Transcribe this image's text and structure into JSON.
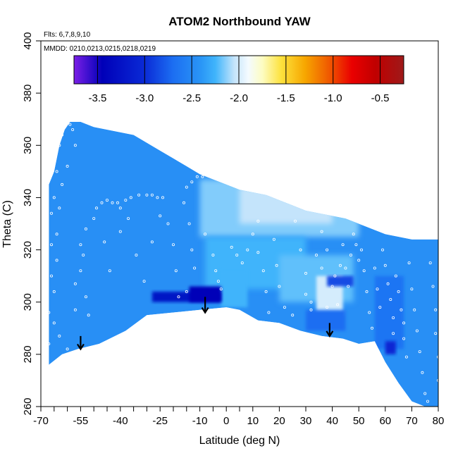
{
  "chart_data": {
    "type": "heatmap",
    "title": "ATOM2 Northbound YAW",
    "annotations": {
      "flights": "Flts: 6,7,8,9,10",
      "dates": "MMDD: 0210,0213,0215,0218,0219"
    },
    "xlabel": "Latitude (deg N)",
    "ylabel": "Theta (C)",
    "xlim": [
      -70,
      80
    ],
    "ylim": [
      260,
      400
    ],
    "x_ticks": [
      -70,
      -55,
      -40,
      -25,
      -10,
      0,
      10,
      20,
      30,
      40,
      50,
      60,
      70,
      80
    ],
    "x_tick_labels": [
      "-70",
      "-55",
      "-40",
      "-25",
      "-10",
      "0",
      "10",
      "20",
      "30",
      "40",
      "50",
      "60",
      "70",
      "80"
    ],
    "y_ticks": [
      260,
      280,
      300,
      320,
      340,
      360,
      380,
      400
    ],
    "y_tick_labels": [
      "260",
      "280",
      "300",
      "320",
      "340",
      "360",
      "380",
      "400"
    ],
    "colorbar": {
      "range": [
        -3.75,
        -0.25
      ],
      "ticks": [
        -3.5,
        -3.0,
        -2.5,
        -2.0,
        -1.5,
        -1.0,
        -0.5
      ],
      "tick_labels": [
        "-3.5",
        "-3.0",
        "-2.5",
        "-2.0",
        "-1.5",
        "-1.0",
        "-0.5"
      ],
      "stops": [
        {
          "value": -3.75,
          "color": "#7b1fe6"
        },
        {
          "value": -3.45,
          "color": "#0000b8"
        },
        {
          "value": -3.0,
          "color": "#0a2ad6"
        },
        {
          "value": -2.7,
          "color": "#1c6ef2"
        },
        {
          "value": -2.4,
          "color": "#2a96f6"
        },
        {
          "value": -2.25,
          "color": "#3fb4fb"
        },
        {
          "value": -2.05,
          "color": "#c4e4fb"
        },
        {
          "value": -1.9,
          "color": "#f4fbff"
        },
        {
          "value": -1.75,
          "color": "#fdfcc2"
        },
        {
          "value": -1.55,
          "color": "#fde23d"
        },
        {
          "value": -1.3,
          "color": "#f7a700"
        },
        {
          "value": -1.05,
          "color": "#f05b00"
        },
        {
          "value": -0.8,
          "color": "#ea0000"
        },
        {
          "value": -0.55,
          "color": "#c00000"
        },
        {
          "value": -0.25,
          "color": "#9e1a1a"
        }
      ]
    },
    "field_background_value": -2.45,
    "field_boundary": {
      "top": [
        [
          -67,
          345
        ],
        [
          -65,
          350
        ],
        [
          -63,
          360
        ],
        [
          -61,
          366
        ],
        [
          -59,
          369
        ],
        [
          -55,
          369
        ],
        [
          -50,
          367
        ],
        [
          -45,
          366
        ],
        [
          -40,
          365
        ],
        [
          -35,
          364
        ],
        [
          -30,
          361
        ],
        [
          -25,
          358
        ],
        [
          -20,
          355
        ],
        [
          -15,
          352
        ],
        [
          -10,
          349
        ],
        [
          -5,
          347
        ],
        [
          0,
          345
        ],
        [
          5,
          343
        ],
        [
          10,
          342
        ],
        [
          15,
          341
        ],
        [
          20,
          339
        ],
        [
          25,
          337
        ],
        [
          30,
          335
        ],
        [
          35,
          334
        ],
        [
          40,
          333
        ],
        [
          45,
          332
        ],
        [
          50,
          330
        ],
        [
          55,
          328
        ],
        [
          60,
          326
        ],
        [
          65,
          325
        ],
        [
          70,
          324
        ],
        [
          75,
          324
        ],
        [
          80,
          324
        ]
      ],
      "bottom": [
        [
          -67,
          276
        ],
        [
          -62,
          280
        ],
        [
          -56,
          282
        ],
        [
          -48,
          284
        ],
        [
          -38,
          289
        ],
        [
          -30,
          295
        ],
        [
          -20,
          296
        ],
        [
          -10,
          297
        ],
        [
          0,
          298
        ],
        [
          5,
          297
        ],
        [
          12,
          293
        ],
        [
          20,
          292
        ],
        [
          28,
          289
        ],
        [
          36,
          287
        ],
        [
          44,
          286
        ],
        [
          50,
          284
        ],
        [
          56,
          285
        ],
        [
          60,
          277
        ],
        [
          65,
          269
        ],
        [
          70,
          262
        ],
        [
          75,
          260
        ],
        [
          80,
          260
        ]
      ]
    },
    "field_patches": [
      {
        "x": [
          -10,
          50
        ],
        "y": [
          325,
          347
        ],
        "value": -2.15
      },
      {
        "x": [
          5,
          40
        ],
        "y": [
          330,
          344
        ],
        "value": -2.05
      },
      {
        "x": [
          -8,
          30
        ],
        "y": [
          305,
          325
        ],
        "value": -2.25
      },
      {
        "x": [
          20,
          48
        ],
        "y": [
          300,
          318
        ],
        "value": -2.2
      },
      {
        "x": [
          34,
          44
        ],
        "y": [
          295,
          310
        ],
        "value": -2.0
      },
      {
        "x": [
          -2,
          8
        ],
        "y": [
          298,
          312
        ],
        "value": -2.25
      },
      {
        "x": [
          -28,
          -2
        ],
        "y": [
          300,
          304
        ],
        "value": -3.25
      },
      {
        "x": [
          -14,
          -2
        ],
        "y": [
          300,
          306
        ],
        "value": -3.45
      },
      {
        "x": [
          38,
          48
        ],
        "y": [
          306,
          310
        ],
        "value": -2.85
      },
      {
        "x": [
          56,
          67
        ],
        "y": [
          282,
          310
        ],
        "value": -2.65
      },
      {
        "x": [
          60,
          64
        ],
        "y": [
          280,
          285
        ],
        "value": -3.05
      },
      {
        "x": [
          30,
          45
        ],
        "y": [
          289,
          297
        ],
        "value": -2.7
      }
    ],
    "arrows": [
      {
        "lat": -55,
        "theta_top": 287,
        "theta_tip": 282
      },
      {
        "lat": -8,
        "theta_top": 302,
        "theta_tip": 296
      },
      {
        "lat": 39,
        "theta_top": 292,
        "theta_tip": 287
      }
    ],
    "sample_points": [
      [
        -67,
        284
      ],
      [
        -67,
        296
      ],
      [
        -66,
        310
      ],
      [
        -66,
        322
      ],
      [
        -66,
        334
      ],
      [
        -65,
        340
      ],
      [
        -64,
        350
      ],
      [
        -63,
        360
      ],
      [
        -62,
        364
      ],
      [
        -61,
        367
      ],
      [
        -60,
        369
      ],
      [
        -59,
        368
      ],
      [
        -58,
        366
      ],
      [
        -57,
        360
      ],
      [
        -60,
        352
      ],
      [
        -62,
        345
      ],
      [
        -63,
        336
      ],
      [
        -64,
        326
      ],
      [
        -64,
        316
      ],
      [
        -65,
        304
      ],
      [
        -65,
        292
      ],
      [
        -63,
        287
      ],
      [
        -60,
        282
      ],
      [
        -57,
        307
      ],
      [
        -57,
        297
      ],
      [
        -55,
        312
      ],
      [
        -55,
        322
      ],
      [
        -54,
        318
      ],
      [
        -53,
        328
      ],
      [
        -53,
        302
      ],
      [
        -52,
        295
      ],
      [
        -50,
        332
      ],
      [
        -49,
        336
      ],
      [
        -47,
        338
      ],
      [
        -45,
        339
      ],
      [
        -43,
        338
      ],
      [
        -41,
        338
      ],
      [
        -40,
        336
      ],
      [
        -38,
        339
      ],
      [
        -36,
        340
      ],
      [
        -33,
        341
      ],
      [
        -30,
        341
      ],
      [
        -28,
        341
      ],
      [
        -26,
        340
      ],
      [
        -24,
        340
      ],
      [
        -44,
        312
      ],
      [
        -46,
        323
      ],
      [
        -40,
        327
      ],
      [
        -37,
        332
      ],
      [
        -34,
        318
      ],
      [
        -31,
        308
      ],
      [
        -28,
        323
      ],
      [
        -25,
        333
      ],
      [
        -22,
        330
      ],
      [
        -20,
        322
      ],
      [
        -19,
        312
      ],
      [
        -18,
        302
      ],
      [
        -16,
        338
      ],
      [
        -15,
        344
      ],
      [
        -13,
        346
      ],
      [
        -11,
        348
      ],
      [
        -9,
        348
      ],
      [
        -14,
        330
      ],
      [
        -13,
        320
      ],
      [
        -12,
        313
      ],
      [
        -15,
        304
      ],
      [
        -8,
        326
      ],
      [
        -5,
        318
      ],
      [
        -4,
        312
      ],
      [
        -3,
        308
      ],
      [
        -2,
        305
      ],
      [
        2,
        321
      ],
      [
        4,
        318
      ],
      [
        6,
        315
      ],
      [
        8,
        320
      ],
      [
        10,
        326
      ],
      [
        12,
        331
      ],
      [
        12,
        319
      ],
      [
        14,
        312
      ],
      [
        15,
        304
      ],
      [
        16,
        296
      ],
      [
        18,
        324
      ],
      [
        19,
        314
      ],
      [
        20,
        306
      ],
      [
        22,
        298
      ],
      [
        25,
        295
      ],
      [
        26,
        331
      ],
      [
        28,
        320
      ],
      [
        30,
        311
      ],
      [
        32,
        300
      ],
      [
        34,
        318
      ],
      [
        36,
        327
      ],
      [
        38,
        320
      ],
      [
        40,
        306
      ],
      [
        42,
        299
      ],
      [
        44,
        322
      ],
      [
        45,
        313
      ],
      [
        46,
        306
      ],
      [
        47,
        318
      ],
      [
        48,
        326
      ],
      [
        49,
        322
      ],
      [
        50,
        316
      ],
      [
        51,
        320
      ],
      [
        52,
        312
      ],
      [
        53,
        304
      ],
      [
        54,
        296
      ],
      [
        55,
        290
      ],
      [
        56,
        313
      ],
      [
        57,
        305
      ],
      [
        58,
        298
      ],
      [
        59,
        320
      ],
      [
        60,
        314
      ],
      [
        61,
        307
      ],
      [
        62,
        301
      ],
      [
        63,
        294
      ],
      [
        63,
        288
      ],
      [
        64,
        310
      ],
      [
        65,
        304
      ],
      [
        66,
        297
      ],
      [
        67,
        292
      ],
      [
        67,
        286
      ],
      [
        68,
        279
      ],
      [
        69,
        315
      ],
      [
        70,
        305
      ],
      [
        71,
        297
      ],
      [
        72,
        289
      ],
      [
        73,
        281
      ],
      [
        74,
        273
      ],
      [
        75,
        265
      ],
      [
        76,
        262
      ],
      [
        77,
        315
      ],
      [
        78,
        306
      ],
      [
        79,
        297
      ],
      [
        79,
        288
      ],
      [
        80,
        279
      ],
      [
        80,
        270
      ],
      [
        30,
        303
      ],
      [
        32,
        297
      ],
      [
        36,
        313
      ],
      [
        38,
        298
      ],
      [
        41,
        310
      ],
      [
        43,
        314
      ]
    ]
  }
}
